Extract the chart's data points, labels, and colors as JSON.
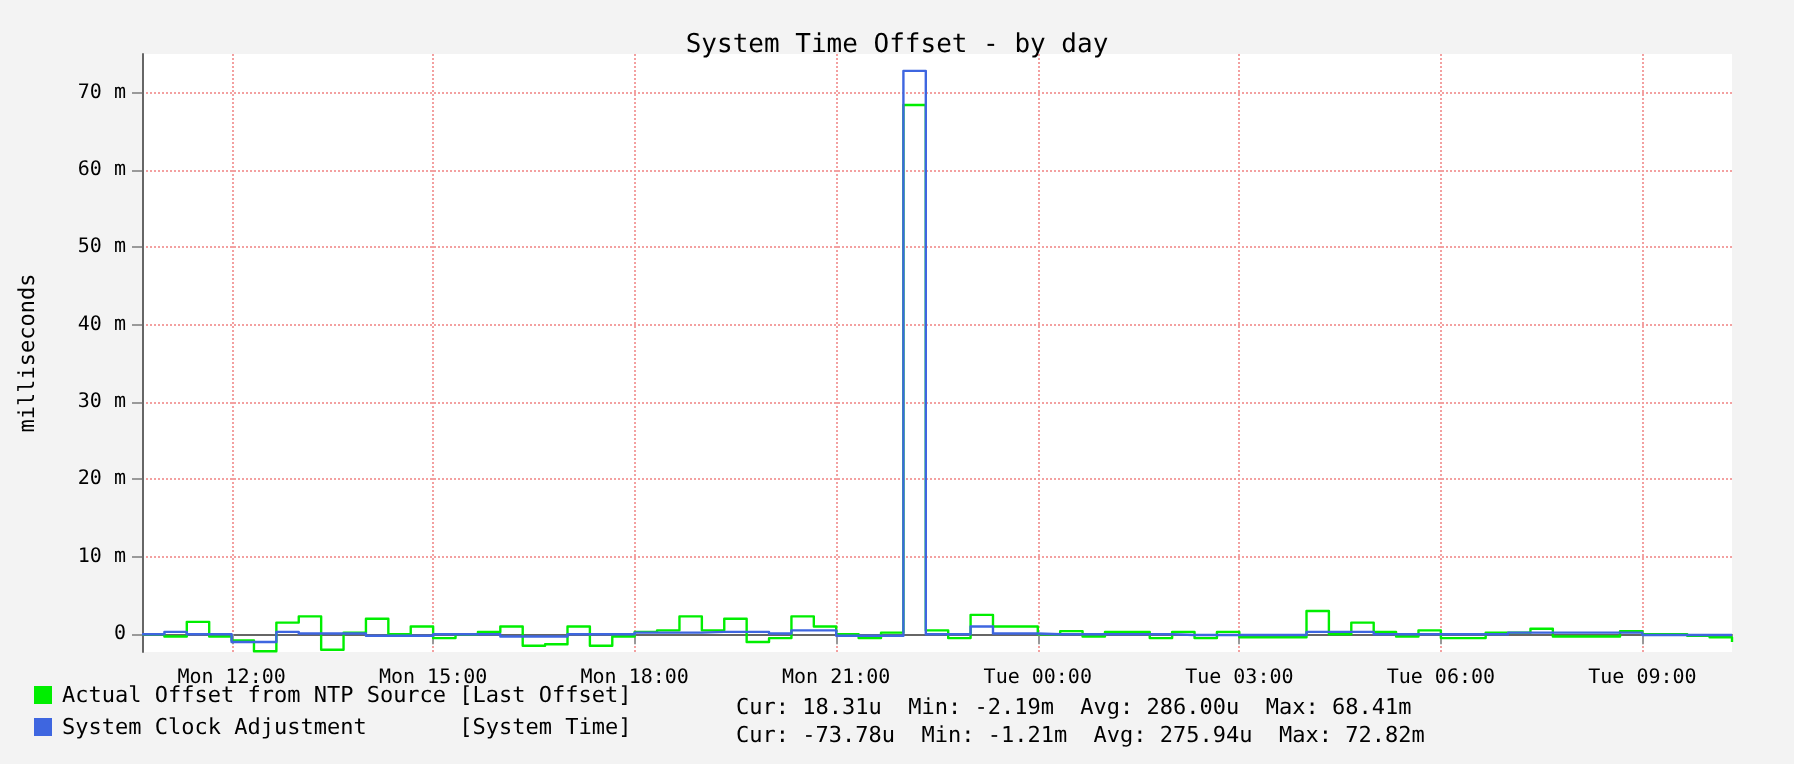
{
  "chart_data": {
    "type": "step",
    "title": "System Time Offset - by day",
    "ylabel": "milliseconds",
    "categories": [
      null,
      null,
      null,
      null,
      "Mon 12:00",
      null,
      null,
      null,
      null,
      null,
      null,
      null,
      null,
      "Mon 15:00",
      null,
      null,
      null,
      null,
      null,
      null,
      null,
      null,
      "Mon 18:00",
      null,
      null,
      null,
      null,
      null,
      null,
      null,
      null,
      "Mon 21:00",
      null,
      null,
      null,
      null,
      null,
      null,
      null,
      null,
      "Tue 00:00",
      null,
      null,
      null,
      null,
      null,
      null,
      null,
      null,
      "Tue 03:00",
      null,
      null,
      null,
      null,
      null,
      null,
      null,
      null,
      "Tue 06:00",
      null,
      null,
      null,
      null,
      null,
      null,
      null,
      null,
      "Tue 09:00",
      null,
      null,
      null,
      null
    ],
    "ylim": [
      -2.3,
      75
    ],
    "yticks": [
      0,
      {
        "value": 10,
        "label": "10 m"
      },
      {
        "value": 20,
        "label": "20 m"
      },
      {
        "value": 30,
        "label": "30 m"
      },
      {
        "value": 40,
        "label": "40 m"
      },
      {
        "value": 50,
        "label": "50 m"
      },
      {
        "value": 60,
        "label": "60 m"
      },
      {
        "value": 70,
        "label": "70 m"
      }
    ],
    "grid": true,
    "legend": "bottom left",
    "marker": "none",
    "line_style": "solid",
    "series": [
      {
        "name": "Actual Offset from NTP Source [Last Offset]",
        "color": "#00ee00",
        "values": [
          0,
          -0.3,
          1.6,
          -0.3,
          -0.8,
          -2.2,
          1.5,
          2.3,
          -2,
          0.2,
          2,
          0,
          1,
          -0.5,
          0,
          0.3,
          1,
          -1.5,
          -1.3,
          1,
          -1.5,
          -0.3,
          0.3,
          0.5,
          2.3,
          0.5,
          2,
          -1,
          -0.5,
          2.3,
          1,
          0,
          -0.5,
          0.2,
          68.41,
          0.5,
          -0.5,
          2.5,
          1,
          1,
          0,
          0.4,
          -0.3,
          0.3,
          0.3,
          -0.5,
          0.3,
          -0.5,
          0.3,
          -0.4,
          -0.4,
          -0.4,
          3,
          0,
          1.5,
          0.3,
          -0.3,
          0.5,
          -0.5,
          -0.5,
          0.2,
          0.2,
          0.7,
          -0.3,
          -0.3,
          -0.3,
          0.4,
          0,
          0,
          -0.2,
          -0.4,
          -1
        ]
      },
      {
        "name": "System Clock Adjustment       [System Time]",
        "color": "#3e66e0",
        "values": [
          0,
          0.3,
          0,
          0,
          -1,
          -1,
          0.3,
          0.1,
          0.1,
          0.1,
          -0.2,
          -0.2,
          -0.2,
          0,
          0,
          0,
          -0.3,
          -0.3,
          -0.3,
          0,
          0,
          0,
          0.2,
          0.2,
          0.2,
          0.3,
          0.3,
          0.3,
          0.1,
          0.5,
          0.5,
          -0.2,
          -0.2,
          -0.2,
          72.82,
          0,
          0,
          1,
          0.1,
          0.1,
          0,
          0,
          0,
          0,
          0,
          0,
          -0.1,
          -0.1,
          -0.1,
          -0.1,
          -0.1,
          -0.1,
          0.3,
          0.3,
          0.3,
          0,
          0,
          0,
          0,
          0,
          0,
          0.2,
          0.2,
          0.2,
          0.2,
          0.2,
          0.2,
          -0.1,
          -0.1,
          -0.1,
          -0.1,
          0
        ]
      }
    ],
    "annotations": [
      "Cur: 18.31u  Min: -2.19m  Avg: 286.00u  Max: 68.41m",
      "Cur: -73.78u  Min: -1.21m  Avg: 275.94u  Max: 72.82m"
    ]
  }
}
